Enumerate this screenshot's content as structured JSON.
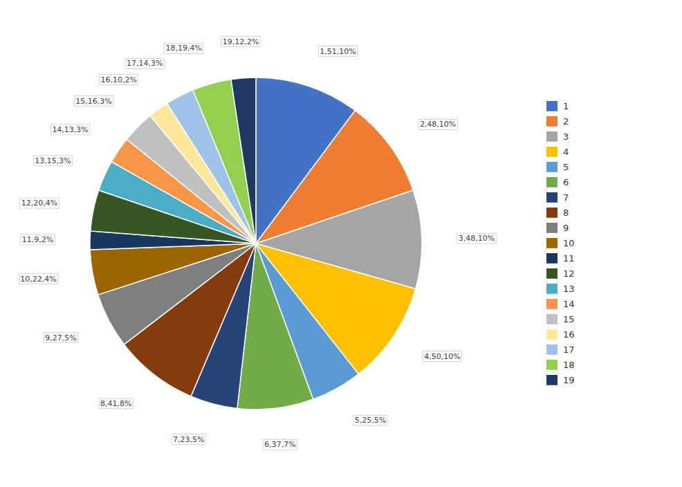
{
  "chart_data": {
    "type": "pie",
    "categories": [
      "1",
      "2",
      "3",
      "4",
      "5",
      "6",
      "7",
      "8",
      "9",
      "10",
      "11",
      "12",
      "13",
      "14",
      "15",
      "16",
      "17",
      "18",
      "19"
    ],
    "values": [
      51,
      48,
      48,
      50,
      25,
      37,
      23,
      41,
      27,
      22,
      9,
      20,
      15,
      13,
      16,
      10,
      14,
      19,
      12
    ],
    "colors": [
      "#4472C4",
      "#ED7D31",
      "#A5A5A5",
      "#FFC000",
      "#5B9BD5",
      "#70AD47",
      "#264478",
      "#843C0C",
      "#7F7F7F",
      "#9C6500",
      "#17375E",
      "#375623",
      "#4BACC6",
      "#F79646",
      "#C0C0C0",
      "#FFE699",
      "#9DC3E6",
      "#92D050",
      "#1F3864"
    ],
    "value_labels": [
      "1,51,10%",
      "2,48,10%",
      "3,48,10%",
      "4,50,10%",
      "5,25,5%",
      "6,37,7%",
      "7,23,5%",
      "8,41,8%",
      "9,27,5%",
      "10,22,4%",
      "11,9,2%",
      "12,20,4%",
      "13,15,3%",
      "14,13,3%",
      "15,16,3%",
      "16,10,2%",
      "17,14,3%",
      "18,19,4%",
      "19,12,2%"
    ],
    "data_labels": true,
    "legend": "right"
  }
}
